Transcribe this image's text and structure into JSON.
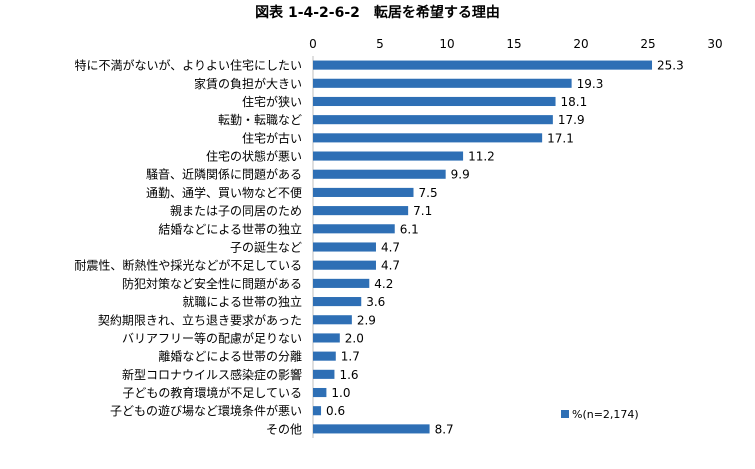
{
  "chart_data": {
    "type": "bar",
    "orientation": "horizontal",
    "title": "図表 1-4-2-6-2　転居を希望する理由",
    "categories": [
      "特に不満がないが、よりよい住宅にしたい",
      "家賃の負担が大きい",
      "住宅が狭い",
      "転勤・転職など",
      "住宅が古い",
      "住宅の状態が悪い",
      "騒音、近隣関係に問題がある",
      "通勤、通学、買い物など不便",
      "親または子の同居のため",
      "結婚などによる世帯の独立",
      "子の誕生など",
      "耐震性、断熱性や採光などが不足している",
      "防犯対策など安全性に問題がある",
      "就職による世帯の独立",
      "契約期限きれ、立ち退き要求があった",
      "バリアフリー等の配慮が足りない",
      "離婚などによる世帯の分離",
      "新型コロナウイルス感染症の影響",
      "子どもの教育環境が不足している",
      "子どもの遊び場など環境条件が悪い",
      "その他"
    ],
    "series": [
      {
        "name": "%(n=2,174)",
        "values": [
          25.3,
          19.3,
          18.1,
          17.9,
          17.1,
          11.2,
          9.9,
          7.5,
          7.1,
          6.1,
          4.7,
          4.7,
          4.2,
          3.6,
          2.9,
          2.0,
          1.7,
          1.6,
          1.0,
          0.6,
          8.7
        ],
        "value_labels": [
          "25.3",
          "19.3",
          "18.1",
          "17.9",
          "17.1",
          "11.2",
          "9.9",
          "7.5",
          "7.1",
          "6.1",
          "4.7",
          "4.7",
          "4.2",
          "3.6",
          "2.9",
          "2.0",
          "1.7",
          "1.6",
          "1.0",
          "0.6",
          "8.7"
        ]
      }
    ],
    "xlim": [
      0,
      30
    ],
    "xticks": [
      "0",
      "5",
      "10",
      "15",
      "20",
      "25",
      "30"
    ],
    "grid": false,
    "legend_position": "bottom-right",
    "bar_color": "#2e6fb5"
  }
}
